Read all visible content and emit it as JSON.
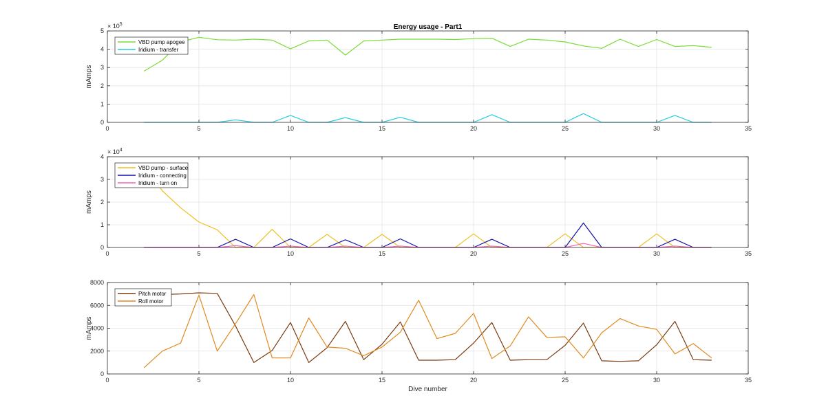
{
  "chart_data": [
    {
      "type": "line",
      "title": "Energy usage - Part1",
      "xlabel": "",
      "ylabel": "mAmps",
      "xlim": [
        0,
        35
      ],
      "ylim": [
        0,
        5
      ],
      "xticks": [
        0,
        5,
        10,
        15,
        20,
        25,
        30,
        35
      ],
      "yticks": [
        0,
        1,
        2,
        3,
        4,
        5
      ],
      "y_multiplier": "× 10^5",
      "y_multiplier_base": "× 10",
      "y_multiplier_exp": "5",
      "grid": true,
      "legend_position": "top-left",
      "x": [
        2,
        3,
        4,
        5,
        6,
        7,
        8,
        9,
        10,
        11,
        12,
        13,
        14,
        15,
        16,
        17,
        18,
        19,
        20,
        21,
        22,
        23,
        24,
        25,
        26,
        27,
        28,
        29,
        30,
        31,
        32,
        33
      ],
      "series": [
        {
          "name": "VBD pump apogee",
          "color": "#77DD33",
          "values": [
            2.8,
            3.4,
            4.4,
            4.65,
            4.52,
            4.5,
            4.55,
            4.5,
            4.02,
            4.45,
            4.5,
            3.68,
            4.45,
            4.5,
            4.55,
            4.55,
            4.55,
            4.53,
            4.58,
            4.6,
            4.15,
            4.55,
            4.5,
            4.4,
            4.18,
            4.05,
            4.55,
            4.15,
            4.53,
            4.15,
            4.2,
            4.1
          ]
        },
        {
          "name": "Iridium - transfer",
          "color": "#22CCDD",
          "values": [
            0,
            0,
            0,
            0,
            0,
            0.14,
            0,
            0,
            0.38,
            0,
            0,
            0.26,
            0,
            0,
            0.28,
            0,
            0,
            0,
            0,
            0.42,
            0,
            0,
            0,
            0,
            0.48,
            0,
            0,
            0,
            0,
            0.38,
            0,
            0
          ]
        }
      ]
    },
    {
      "type": "line",
      "title": "",
      "xlabel": "",
      "ylabel": "mAmps",
      "xlim": [
        0,
        35
      ],
      "ylim": [
        0,
        4
      ],
      "xticks": [
        0,
        5,
        10,
        15,
        20,
        25,
        30,
        35
      ],
      "yticks": [
        0,
        1,
        2,
        3,
        4
      ],
      "y_multiplier": "× 10^4",
      "y_multiplier_base": "× 10",
      "y_multiplier_exp": "4",
      "grid": true,
      "legend_position": "top-left",
      "x": [
        2,
        3,
        4,
        5,
        6,
        7,
        8,
        9,
        10,
        11,
        12,
        13,
        14,
        15,
        16,
        17,
        18,
        19,
        20,
        21,
        22,
        23,
        24,
        25,
        26,
        27,
        28,
        29,
        30,
        31,
        32,
        33
      ],
      "series": [
        {
          "name": "VBD pump - surface",
          "color": "#EEC020",
          "values": [
            3.6,
            2.5,
            1.75,
            1.12,
            0.78,
            0,
            0,
            0.8,
            0,
            0,
            0.58,
            0,
            0,
            0.58,
            0,
            0,
            0,
            0,
            0.6,
            0,
            0,
            0,
            0,
            0.6,
            0,
            0,
            0,
            0,
            0.6,
            0,
            0,
            0
          ]
        },
        {
          "name": "Iridium - connecting",
          "color": "#1010AA",
          "values": [
            0,
            0,
            0,
            0,
            0,
            0.36,
            0,
            0,
            0.38,
            0,
            0,
            0.34,
            0,
            0,
            0.38,
            0,
            0,
            0,
            0,
            0.36,
            0,
            0,
            0,
            0,
            1.08,
            0,
            0,
            0,
            0,
            0.36,
            0,
            0
          ]
        },
        {
          "name": "Iridium - turn on",
          "color": "#EE66BB",
          "values": [
            0,
            0,
            0,
            0,
            0,
            0.08,
            0,
            0,
            0.06,
            0,
            0,
            0.06,
            0,
            0,
            0.06,
            0,
            0,
            0,
            0,
            0.06,
            0,
            0,
            0,
            0,
            0.18,
            0,
            0,
            0,
            0,
            0.06,
            0,
            0
          ]
        }
      ]
    },
    {
      "type": "line",
      "title": "",
      "xlabel": "Dive number",
      "ylabel": "mAmps",
      "xlim": [
        0,
        35
      ],
      "ylim": [
        0,
        8000
      ],
      "xticks": [
        0,
        5,
        10,
        15,
        20,
        25,
        30,
        35
      ],
      "yticks": [
        0,
        2000,
        4000,
        6000,
        8000
      ],
      "grid": true,
      "legend_position": "top-left",
      "x": [
        2,
        3,
        4,
        5,
        6,
        7,
        8,
        9,
        10,
        11,
        12,
        13,
        14,
        15,
        16,
        17,
        18,
        19,
        20,
        21,
        22,
        23,
        24,
        25,
        26,
        27,
        28,
        29,
        30,
        31,
        32,
        33
      ],
      "series": [
        {
          "name": "Pitch motor",
          "color": "#7A3A10",
          "values": [
            6900,
            6950,
            7000,
            7100,
            7050,
            4200,
            1000,
            2050,
            4500,
            1000,
            2300,
            4600,
            1250,
            2600,
            4550,
            1200,
            1200,
            1250,
            2700,
            4500,
            1200,
            1250,
            1250,
            2500,
            4450,
            1150,
            1100,
            1150,
            2550,
            4600,
            1250,
            1200
          ]
        },
        {
          "name": "Roll motor",
          "color": "#E08A1E",
          "values": [
            550,
            2000,
            2700,
            6900,
            2000,
            4400,
            6950,
            1400,
            1400,
            4900,
            2350,
            2250,
            1600,
            2350,
            3650,
            6450,
            3100,
            3550,
            5300,
            1350,
            2450,
            5000,
            3200,
            3250,
            1400,
            3600,
            4850,
            4200,
            3900,
            1750,
            2650,
            1400
          ]
        }
      ]
    }
  ]
}
